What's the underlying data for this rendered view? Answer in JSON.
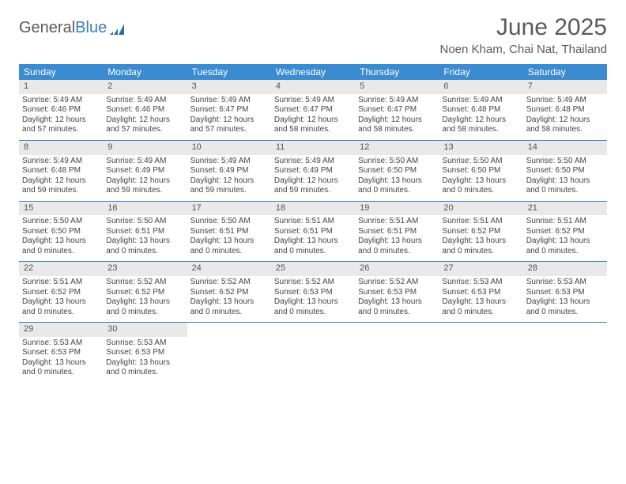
{
  "brand": {
    "name1": "General",
    "name2": "Blue"
  },
  "title": "June 2025",
  "location": "Noen Kham, Chai Nat, Thailand",
  "colors": {
    "header_bg": "#3a8bd0",
    "header_text": "#ffffff",
    "daynum_bg": "#e9e9e9",
    "border": "#3a7cbf",
    "text": "#444444",
    "title_text": "#5a5a5a",
    "brand_blue": "#3a7cbf"
  },
  "weekdays": [
    "Sunday",
    "Monday",
    "Tuesday",
    "Wednesday",
    "Thursday",
    "Friday",
    "Saturday"
  ],
  "weeks": [
    [
      {
        "n": "1",
        "sr": "Sunrise: 5:49 AM",
        "ss": "Sunset: 6:46 PM",
        "dl": "Daylight: 12 hours and 57 minutes."
      },
      {
        "n": "2",
        "sr": "Sunrise: 5:49 AM",
        "ss": "Sunset: 6:46 PM",
        "dl": "Daylight: 12 hours and 57 minutes."
      },
      {
        "n": "3",
        "sr": "Sunrise: 5:49 AM",
        "ss": "Sunset: 6:47 PM",
        "dl": "Daylight: 12 hours and 57 minutes."
      },
      {
        "n": "4",
        "sr": "Sunrise: 5:49 AM",
        "ss": "Sunset: 6:47 PM",
        "dl": "Daylight: 12 hours and 58 minutes."
      },
      {
        "n": "5",
        "sr": "Sunrise: 5:49 AM",
        "ss": "Sunset: 6:47 PM",
        "dl": "Daylight: 12 hours and 58 minutes."
      },
      {
        "n": "6",
        "sr": "Sunrise: 5:49 AM",
        "ss": "Sunset: 6:48 PM",
        "dl": "Daylight: 12 hours and 58 minutes."
      },
      {
        "n": "7",
        "sr": "Sunrise: 5:49 AM",
        "ss": "Sunset: 6:48 PM",
        "dl": "Daylight: 12 hours and 58 minutes."
      }
    ],
    [
      {
        "n": "8",
        "sr": "Sunrise: 5:49 AM",
        "ss": "Sunset: 6:48 PM",
        "dl": "Daylight: 12 hours and 59 minutes."
      },
      {
        "n": "9",
        "sr": "Sunrise: 5:49 AM",
        "ss": "Sunset: 6:49 PM",
        "dl": "Daylight: 12 hours and 59 minutes."
      },
      {
        "n": "10",
        "sr": "Sunrise: 5:49 AM",
        "ss": "Sunset: 6:49 PM",
        "dl": "Daylight: 12 hours and 59 minutes."
      },
      {
        "n": "11",
        "sr": "Sunrise: 5:49 AM",
        "ss": "Sunset: 6:49 PM",
        "dl": "Daylight: 12 hours and 59 minutes."
      },
      {
        "n": "12",
        "sr": "Sunrise: 5:50 AM",
        "ss": "Sunset: 6:50 PM",
        "dl": "Daylight: 13 hours and 0 minutes."
      },
      {
        "n": "13",
        "sr": "Sunrise: 5:50 AM",
        "ss": "Sunset: 6:50 PM",
        "dl": "Daylight: 13 hours and 0 minutes."
      },
      {
        "n": "14",
        "sr": "Sunrise: 5:50 AM",
        "ss": "Sunset: 6:50 PM",
        "dl": "Daylight: 13 hours and 0 minutes."
      }
    ],
    [
      {
        "n": "15",
        "sr": "Sunrise: 5:50 AM",
        "ss": "Sunset: 6:50 PM",
        "dl": "Daylight: 13 hours and 0 minutes."
      },
      {
        "n": "16",
        "sr": "Sunrise: 5:50 AM",
        "ss": "Sunset: 6:51 PM",
        "dl": "Daylight: 13 hours and 0 minutes."
      },
      {
        "n": "17",
        "sr": "Sunrise: 5:50 AM",
        "ss": "Sunset: 6:51 PM",
        "dl": "Daylight: 13 hours and 0 minutes."
      },
      {
        "n": "18",
        "sr": "Sunrise: 5:51 AM",
        "ss": "Sunset: 6:51 PM",
        "dl": "Daylight: 13 hours and 0 minutes."
      },
      {
        "n": "19",
        "sr": "Sunrise: 5:51 AM",
        "ss": "Sunset: 6:51 PM",
        "dl": "Daylight: 13 hours and 0 minutes."
      },
      {
        "n": "20",
        "sr": "Sunrise: 5:51 AM",
        "ss": "Sunset: 6:52 PM",
        "dl": "Daylight: 13 hours and 0 minutes."
      },
      {
        "n": "21",
        "sr": "Sunrise: 5:51 AM",
        "ss": "Sunset: 6:52 PM",
        "dl": "Daylight: 13 hours and 0 minutes."
      }
    ],
    [
      {
        "n": "22",
        "sr": "Sunrise: 5:51 AM",
        "ss": "Sunset: 6:52 PM",
        "dl": "Daylight: 13 hours and 0 minutes."
      },
      {
        "n": "23",
        "sr": "Sunrise: 5:52 AM",
        "ss": "Sunset: 6:52 PM",
        "dl": "Daylight: 13 hours and 0 minutes."
      },
      {
        "n": "24",
        "sr": "Sunrise: 5:52 AM",
        "ss": "Sunset: 6:52 PM",
        "dl": "Daylight: 13 hours and 0 minutes."
      },
      {
        "n": "25",
        "sr": "Sunrise: 5:52 AM",
        "ss": "Sunset: 6:53 PM",
        "dl": "Daylight: 13 hours and 0 minutes."
      },
      {
        "n": "26",
        "sr": "Sunrise: 5:52 AM",
        "ss": "Sunset: 6:53 PM",
        "dl": "Daylight: 13 hours and 0 minutes."
      },
      {
        "n": "27",
        "sr": "Sunrise: 5:53 AM",
        "ss": "Sunset: 6:53 PM",
        "dl": "Daylight: 13 hours and 0 minutes."
      },
      {
        "n": "28",
        "sr": "Sunrise: 5:53 AM",
        "ss": "Sunset: 6:53 PM",
        "dl": "Daylight: 13 hours and 0 minutes."
      }
    ],
    [
      {
        "n": "29",
        "sr": "Sunrise: 5:53 AM",
        "ss": "Sunset: 6:53 PM",
        "dl": "Daylight: 13 hours and 0 minutes."
      },
      {
        "n": "30",
        "sr": "Sunrise: 5:53 AM",
        "ss": "Sunset: 6:53 PM",
        "dl": "Daylight: 13 hours and 0 minutes."
      },
      null,
      null,
      null,
      null,
      null
    ]
  ]
}
